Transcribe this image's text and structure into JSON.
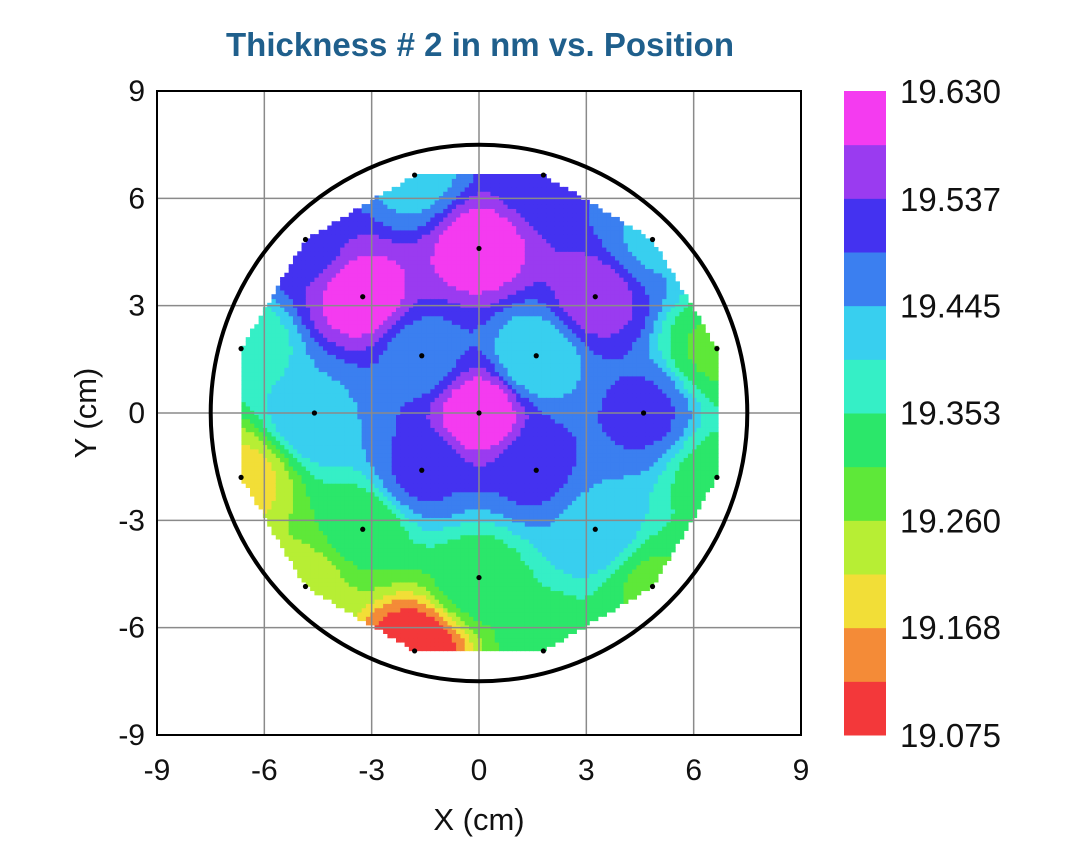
{
  "chart_data": {
    "type": "contour",
    "title": "Thickness # 2 in nm vs. Position",
    "xlabel": "X (cm)",
    "ylabel": "Y (cm)",
    "xlim": [
      -9,
      9
    ],
    "ylim": [
      -9,
      9
    ],
    "xticks": [
      "-9",
      "-6",
      "-3",
      "0",
      "3",
      "6",
      "9"
    ],
    "yticks": [
      "-9",
      "-6",
      "-3",
      "0",
      "3",
      "6",
      "9"
    ],
    "grid": true,
    "wafer_radius": 7.5,
    "colorbar": {
      "min": 19.075,
      "max": 19.63,
      "tick_labels": [
        "19.630",
        "19.537",
        "19.445",
        "19.353",
        "19.260",
        "19.168",
        "19.075"
      ],
      "tick_values": [
        19.63,
        19.537,
        19.445,
        19.353,
        19.26,
        19.168,
        19.075
      ],
      "colors": [
        "#f3383a",
        "#f48b37",
        "#f2de37",
        "#b7ee34",
        "#5ee839",
        "#2be76a",
        "#35efc6",
        "#38cfef",
        "#3b7ff0",
        "#4432f0",
        "#9a3bf0",
        "#f43bf0"
      ]
    },
    "points": [
      {
        "x": 0,
        "y": 0,
        "value": 19.62
      },
      {
        "x": 1.6,
        "y": 1.6,
        "value": 19.41
      },
      {
        "x": -1.6,
        "y": 1.6,
        "value": 19.47
      },
      {
        "x": -1.6,
        "y": -1.6,
        "value": 19.5
      },
      {
        "x": 1.6,
        "y": -1.6,
        "value": 19.5
      },
      {
        "x": 0,
        "y": 4.6,
        "value": 19.61
      },
      {
        "x": 3.25,
        "y": 3.25,
        "value": 19.56
      },
      {
        "x": 4.6,
        "y": 0,
        "value": 19.5
      },
      {
        "x": 3.25,
        "y": -3.25,
        "value": 19.43
      },
      {
        "x": 0,
        "y": -4.6,
        "value": 19.33
      },
      {
        "x": -3.25,
        "y": -3.25,
        "value": 19.32
      },
      {
        "x": -4.6,
        "y": 0,
        "value": 19.44
      },
      {
        "x": -3.25,
        "y": 3.25,
        "value": 19.61
      },
      {
        "x": 1.8,
        "y": 6.65,
        "value": 19.5
      },
      {
        "x": 4.85,
        "y": 4.85,
        "value": 19.44
      },
      {
        "x": 6.65,
        "y": 1.8,
        "value": 19.3
      },
      {
        "x": 6.65,
        "y": -1.8,
        "value": 19.33
      },
      {
        "x": 4.85,
        "y": -4.85,
        "value": 19.3
      },
      {
        "x": 1.8,
        "y": -6.65,
        "value": 19.32
      },
      {
        "x": -1.8,
        "y": -6.65,
        "value": 19.08
      },
      {
        "x": -4.85,
        "y": -4.85,
        "value": 19.24
      },
      {
        "x": -6.65,
        "y": -1.8,
        "value": 19.2
      },
      {
        "x": -6.65,
        "y": 1.8,
        "value": 19.36
      },
      {
        "x": -4.85,
        "y": 4.85,
        "value": 19.52
      },
      {
        "x": -1.8,
        "y": 6.65,
        "value": 19.43
      }
    ]
  }
}
